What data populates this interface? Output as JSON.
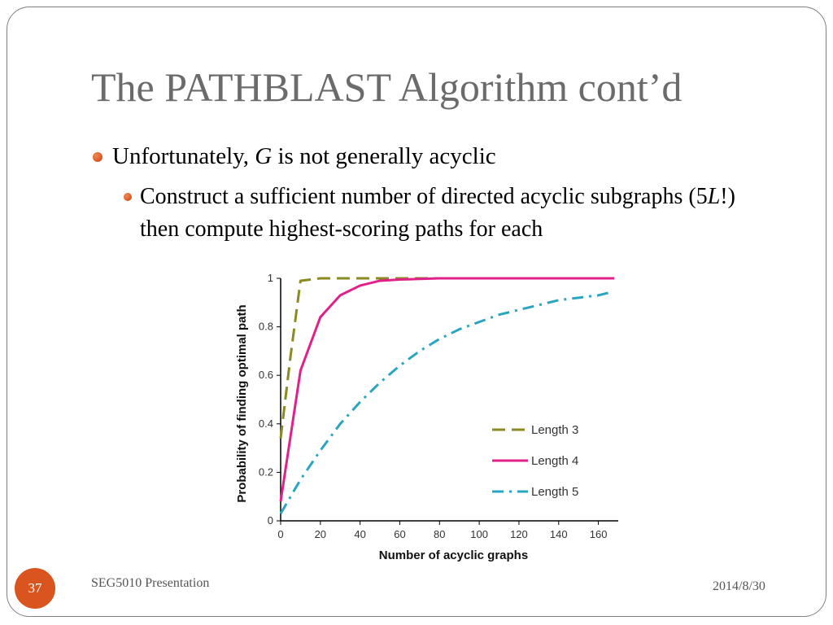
{
  "slide": {
    "title": "The PATHBLAST Algorithm cont’d",
    "bullet1": {
      "pre": "Unfortunately, ",
      "italic": "G",
      "post": " is not generally acyclic"
    },
    "bullet2": {
      "pre": "Construct a sufficient number of directed acyclic subgraphs (5",
      "italic": "L",
      "post": "!) then compute highest-scoring paths for each"
    },
    "footer": "SEG5010 Presentation",
    "date": "2014/8/30",
    "page_number": "37",
    "accent_color": "#d9541e"
  },
  "chart_data": {
    "type": "line",
    "xlabel": "Number of acyclic graphs",
    "ylabel": "Probability of finding optimal path",
    "xlim": [
      0,
      170
    ],
    "ylim": [
      0,
      1
    ],
    "xticks": [
      "0",
      "20",
      "40",
      "60",
      "80",
      "100",
      "120",
      "140",
      "160"
    ],
    "yticks": [
      "0",
      "0.2",
      "0.4",
      "0.6",
      "0.8",
      "1"
    ],
    "legend_position": "bottom-right",
    "grid": false,
    "series": [
      {
        "name": "Length 3",
        "style": "dashed",
        "color": "#8a8a22",
        "x": [
          0,
          5,
          10,
          20,
          40,
          60,
          80,
          100,
          120,
          140,
          160,
          168
        ],
        "y": [
          0.34,
          0.68,
          0.99,
          1.0,
          1.0,
          1.0,
          1.0,
          1.0,
          1.0,
          1.0,
          1.0,
          1.0
        ]
      },
      {
        "name": "Length 4",
        "style": "solid",
        "color": "#e0218a",
        "x": [
          0,
          10,
          20,
          30,
          40,
          50,
          60,
          80,
          100,
          120,
          140,
          160,
          168
        ],
        "y": [
          0.08,
          0.62,
          0.84,
          0.93,
          0.97,
          0.99,
          0.995,
          1.0,
          1.0,
          1.0,
          1.0,
          1.0,
          1.0
        ]
      },
      {
        "name": "Length 5",
        "style": "dashdot",
        "color": "#2aa5c0",
        "x": [
          0,
          10,
          20,
          30,
          40,
          50,
          60,
          70,
          80,
          90,
          100,
          110,
          120,
          130,
          140,
          150,
          160,
          165
        ],
        "y": [
          0.03,
          0.17,
          0.29,
          0.4,
          0.49,
          0.57,
          0.64,
          0.7,
          0.75,
          0.79,
          0.82,
          0.85,
          0.87,
          0.89,
          0.91,
          0.92,
          0.93,
          0.94
        ]
      }
    ]
  }
}
